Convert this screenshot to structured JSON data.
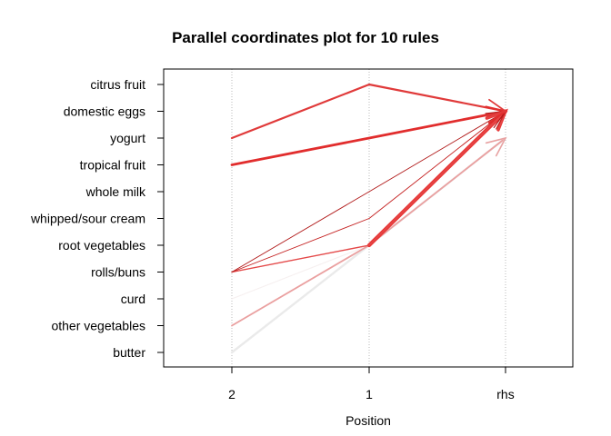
{
  "chart_data": {
    "type": "line",
    "title": "Parallel coordinates plot for 10 rules",
    "xlabel": "Position",
    "ylabel": "",
    "x": [
      "2",
      "1",
      "rhs"
    ],
    "y_categories": [
      "citrus fruit",
      "domestic eggs",
      "yogurt",
      "tropical fruit",
      "whole milk",
      "whipped/sour cream",
      "root vegetables",
      "rolls/buns",
      "curd",
      "other vegetables",
      "butter"
    ],
    "grid": "vertical dotted",
    "legend": "none",
    "series": [
      {
        "values": [
          "yogurt",
          "citrus fruit",
          "domestic eggs"
        ],
        "color": "#e03a3a",
        "width": 2.2
      },
      {
        "values": [
          "tropical fruit",
          "yogurt",
          "domestic eggs"
        ],
        "color": "#e12d2d",
        "width": 2.8
      },
      {
        "values": [
          "rolls/buns",
          "whole milk",
          "domestic eggs"
        ],
        "color": "#b01818",
        "width": 0.9
      },
      {
        "values": [
          "rolls/buns",
          "whipped/sour cream",
          "domestic eggs"
        ],
        "color": "#c42020",
        "width": 0.9
      },
      {
        "values": [
          "rolls/buns",
          "root vegetables",
          "domestic eggs"
        ],
        "color": "#e44848",
        "width": 1.4
      },
      {
        "values": [
          null,
          "root vegetables",
          "domestic eggs"
        ],
        "color": "#e83636",
        "width": 4.2
      },
      {
        "values": [
          "other vegetables",
          "root vegetables",
          "yogurt"
        ],
        "color": "#eaa0a0",
        "width": 1.8
      },
      {
        "values": [
          "rolls/buns",
          "root vegetables",
          "yogurt"
        ],
        "color": "#f4c6c6",
        "width": 1.2
      },
      {
        "values": [
          "curd",
          "root vegetables",
          "yogurt"
        ],
        "color": "#f6f0f0",
        "width": 1.2
      },
      {
        "values": [
          "butter",
          "root vegetables",
          "yogurt"
        ],
        "color": "#eaeaea",
        "width": 2.4
      }
    ]
  }
}
